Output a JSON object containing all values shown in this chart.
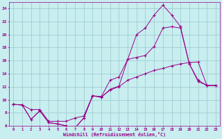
{
  "xlabel": "Windchill (Refroidissement éolien,°C)",
  "bg_color": "#c8eef0",
  "grid_color": "#a0ccd0",
  "line_color": "#990088",
  "xlim": [
    -0.5,
    23.5
  ],
  "ylim": [
    6,
    25
  ],
  "xticks": [
    0,
    1,
    2,
    3,
    4,
    5,
    6,
    7,
    8,
    9,
    10,
    11,
    12,
    13,
    14,
    15,
    16,
    17,
    18,
    19,
    20,
    21,
    22,
    23
  ],
  "yticks": [
    6,
    8,
    10,
    12,
    14,
    16,
    18,
    20,
    22,
    24
  ],
  "line1_x": [
    0,
    1,
    2,
    3,
    4,
    5,
    6,
    7,
    8,
    9,
    10,
    11,
    12,
    13,
    14,
    15,
    16,
    17,
    18,
    19,
    20,
    21,
    22,
    23
  ],
  "line1_y": [
    9.3,
    9.2,
    8.5,
    8.5,
    6.7,
    6.7,
    6.7,
    7.2,
    7.5,
    10.6,
    10.5,
    13.0,
    13.5,
    16.2,
    20.0,
    21.0,
    23.0,
    24.5,
    23.0,
    21.2,
    15.5,
    13.0,
    12.2,
    12.2
  ],
  "line2_x": [
    0,
    1,
    2,
    3,
    4,
    5,
    6,
    7,
    8,
    9,
    10,
    11,
    12,
    13,
    14,
    15,
    16,
    17,
    18,
    19,
    20,
    21,
    22,
    23
  ],
  "line2_y": [
    9.3,
    9.2,
    7.0,
    8.3,
    6.5,
    6.3,
    6.0,
    5.7,
    7.2,
    10.6,
    10.4,
    11.5,
    12.0,
    13.0,
    13.5,
    14.0,
    14.5,
    14.8,
    15.2,
    15.5,
    15.7,
    15.8,
    12.2,
    12.2
  ],
  "line3_x": [
    0,
    1,
    2,
    3,
    4,
    5,
    6,
    7,
    8,
    9,
    10,
    11,
    12,
    13,
    14,
    15,
    16,
    17,
    18,
    19,
    20,
    21,
    22,
    23
  ],
  "line3_y": [
    9.3,
    9.2,
    7.0,
    8.3,
    6.5,
    6.3,
    6.0,
    5.7,
    7.2,
    10.6,
    10.4,
    11.6,
    12.1,
    16.2,
    16.5,
    16.8,
    18.2,
    21.0,
    21.2,
    21.0,
    15.5,
    12.8,
    12.2,
    12.2
  ]
}
